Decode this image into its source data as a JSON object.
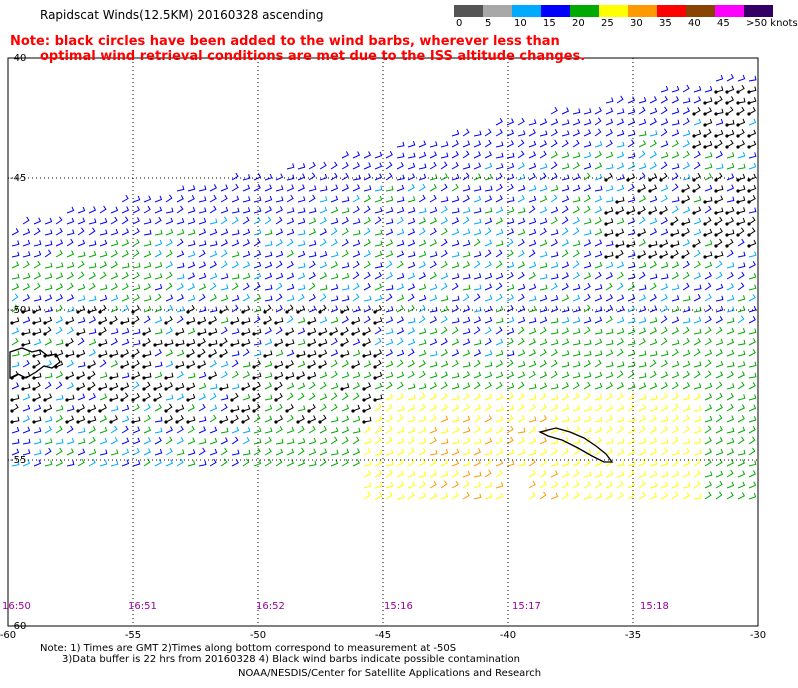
{
  "title": "Rapidscat Winds(12.5KM) 20160328 ascending",
  "note": {
    "line1": "Note: black circles have been added to the wind barbs, wherever less than",
    "line2": "optimal wind retrieval conditions are met due to the ISS altitude changes."
  },
  "colorbar": {
    "labels": [
      "0",
      "5",
      "10",
      "15",
      "20",
      "25",
      "30",
      "35",
      "40",
      "45",
      ">50 knots"
    ],
    "colors": [
      "#555555",
      "#a8a8a8",
      "#00aaff",
      "#0000ff",
      "#00aa00",
      "#ffff00",
      "#ff9900",
      "#ff0000",
      "#884400",
      "#ff00ff",
      "#330066"
    ]
  },
  "axes": {
    "lon_labels": [
      "-60",
      "-55",
      "-50",
      "-45",
      "-40",
      "-35",
      "-30"
    ],
    "lat_labels": [
      "-40",
      "-45",
      "-50",
      "-55",
      "-60"
    ]
  },
  "time_labels": [
    "16:50",
    "16:51",
    "16:52",
    "15:16",
    "15:17",
    "15:18"
  ],
  "time_color": "#990099",
  "footer": {
    "line1": "Note: 1) Times are GMT 2)Times along bottom correspond to measurement at -50S",
    "line2": "3)Data buffer is 22 hrs from 20160328 4) Black wind barbs indicate possible contamination",
    "line3": "NOAA/NESDIS/Center for Satellite Applications and Research"
  }
}
